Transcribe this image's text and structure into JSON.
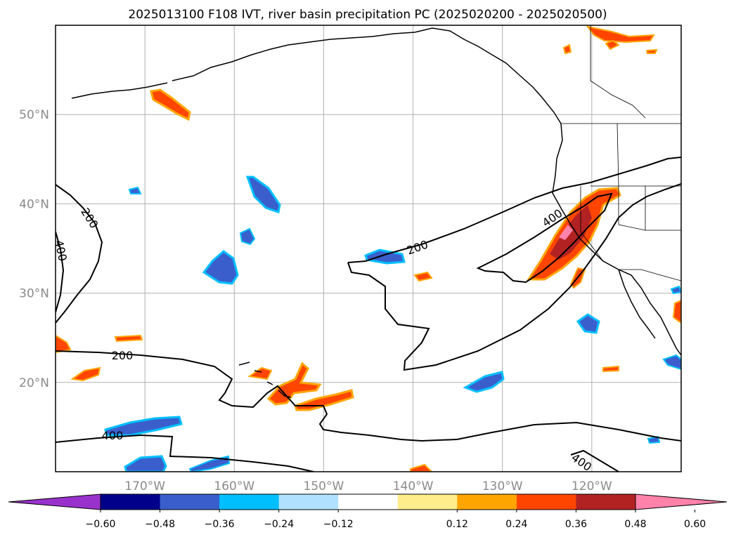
{
  "title": "2025013100 F108 IVT, river basin precipitation PC (2025020200 - 2025020500)",
  "map": {
    "lon_range": [
      -180,
      -110
    ],
    "lat_range": [
      10,
      60
    ],
    "lon_ticks": [
      {
        "lon": -170,
        "label": "170°W"
      },
      {
        "lon": -160,
        "label": "160°W"
      },
      {
        "lon": -150,
        "label": "150°W"
      },
      {
        "lon": -140,
        "label": "140°W"
      },
      {
        "lon": -130,
        "label": "130°W"
      },
      {
        "lon": -120,
        "label": "120°W"
      }
    ],
    "lat_ticks": [
      {
        "lat": 50,
        "label": "50°N"
      },
      {
        "lat": 40,
        "label": "40°N"
      },
      {
        "lat": 30,
        "label": "30°N"
      },
      {
        "lat": 20,
        "label": "20°N"
      }
    ],
    "grid": true,
    "contour_labels": [
      "200",
      "400",
      "200",
      "400",
      "200",
      "400",
      "400"
    ]
  },
  "colorbar": {
    "extend": "both",
    "colors": [
      "#9932cc",
      "#00008b",
      "#3a5fcd",
      "#00bfff",
      "#b0e2ff",
      "#ffffff",
      "#ffec8b",
      "#ffa500",
      "#ff4500",
      "#b22222",
      "#ff82ab"
    ],
    "tick_labels": [
      "−0.60",
      "−0.48",
      "−0.36",
      "−0.24",
      "−0.12",
      "0.12",
      "0.24",
      "0.36",
      "0.48",
      "0.60"
    ]
  }
}
